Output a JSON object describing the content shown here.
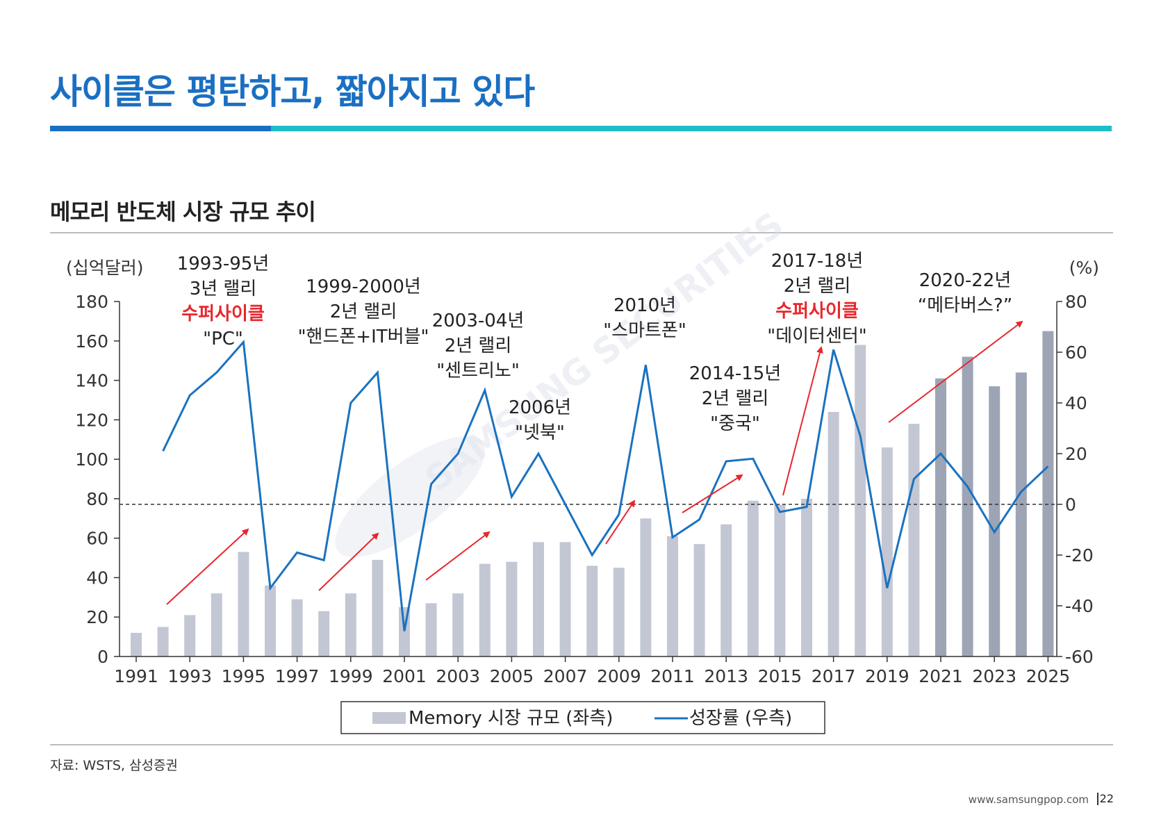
{
  "header": {
    "title": "사이클은 평탄하고, 짧아지고 있다"
  },
  "chart_title": "메모리 반도체 시장 규모 추이",
  "source": "자료: WSTS, 삼성증권",
  "footer": {
    "url": "www.samsungpop.com",
    "page": "22"
  },
  "watermark": "SAMSUNG SECURITIES",
  "colors": {
    "accent": "#1a6fc2",
    "teal": "#1ebec7",
    "bar": "#c3c7d3",
    "bar_forecast": "#9da4b5",
    "line": "#1a72c0",
    "arrow": "#e8262c",
    "highlight_text": "#e8262c"
  },
  "chart_data": {
    "type": "bar+line",
    "left_unit": "(십억달러)",
    "right_unit": "(%)",
    "x_ticks": [
      "1991",
      "1993",
      "1995",
      "1997",
      "1999",
      "2001",
      "2003",
      "2005",
      "2007",
      "2009",
      "2011",
      "2013",
      "2015",
      "2017",
      "2019",
      "2021",
      "2023",
      "2025"
    ],
    "ylim_left": [
      0,
      180
    ],
    "yticks_left": [
      "0",
      "20",
      "40",
      "60",
      "80",
      "100",
      "120",
      "140",
      "160",
      "180"
    ],
    "ylim_right": [
      -60,
      80
    ],
    "yticks_right": [
      "-60",
      "-40",
      "-20",
      "0",
      "20",
      "40",
      "60",
      "80"
    ],
    "grid": false,
    "zero_line": "dashed",
    "legend_position": "bottom",
    "series": [
      {
        "name": "Memory 시장 규모 (좌측)",
        "type": "bar",
        "x": [
          1991,
          1992,
          1993,
          1994,
          1995,
          1996,
          1997,
          1998,
          1999,
          2000,
          2001,
          2002,
          2003,
          2004,
          2005,
          2006,
          2007,
          2008,
          2009,
          2010,
          2011,
          2012,
          2013,
          2014,
          2015,
          2016,
          2017,
          2018,
          2019,
          2020,
          2021,
          2022,
          2023,
          2024,
          2025
        ],
        "values": [
          12,
          15,
          21,
          32,
          53,
          36,
          29,
          23,
          32,
          49,
          25,
          27,
          32,
          47,
          48,
          58,
          58,
          46,
          45,
          70,
          61,
          57,
          67,
          79,
          77,
          80,
          124,
          158,
          106,
          118,
          141,
          152,
          137,
          144,
          165
        ]
      },
      {
        "name": "성장률 (우측)",
        "type": "line",
        "x": [
          1992,
          1993,
          1994,
          1995,
          1996,
          1997,
          1998,
          1999,
          2000,
          2001,
          2002,
          2003,
          2004,
          2005,
          2006,
          2007,
          2008,
          2009,
          2010,
          2011,
          2012,
          2013,
          2014,
          2015,
          2016,
          2017,
          2018,
          2019,
          2020,
          2021,
          2022,
          2023,
          2024,
          2025
        ],
        "values": [
          21,
          43,
          52,
          64,
          -33,
          -19,
          -22,
          40,
          52,
          -50,
          8,
          20,
          45,
          3,
          20,
          0,
          -20,
          -4,
          55,
          -13,
          -6,
          17,
          18,
          -3,
          -1,
          61,
          27,
          -33,
          10,
          20,
          7,
          -11,
          5,
          15
        ]
      }
    ],
    "forecast_from": 2021,
    "annotations": [
      {
        "lines": [
          "1993-95년",
          "3년 랠리",
          "수퍼사이클",
          "\"PC\""
        ],
        "highlight": [
          2
        ]
      },
      {
        "lines": [
          "1999-2000년",
          "2년 랠리",
          "\"핸드폰+IT버블\""
        ],
        "highlight": []
      },
      {
        "lines": [
          "2003-04년",
          "2년 랠리",
          "\"센트리노\""
        ],
        "highlight": []
      },
      {
        "lines": [
          "2006년",
          "\"넷북\""
        ],
        "highlight": []
      },
      {
        "lines": [
          "2010년",
          "\"스마트폰\""
        ],
        "highlight": []
      },
      {
        "lines": [
          "2014-15년",
          "2년 랠리",
          "\"중국\""
        ],
        "highlight": []
      },
      {
        "lines": [
          "2017-18년",
          "2년 랠리",
          "수퍼사이클",
          "\"데이터센터\""
        ],
        "highlight": [
          2
        ]
      },
      {
        "lines": [
          "2020-22년",
          "“메타버스?”"
        ],
        "highlight": []
      }
    ]
  }
}
